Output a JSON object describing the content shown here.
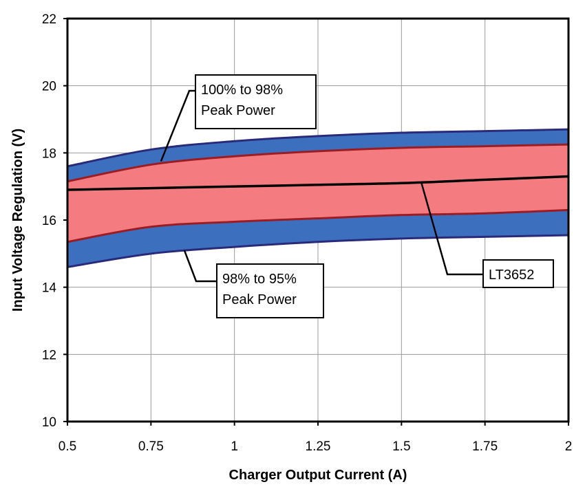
{
  "chart_data": {
    "type": "area",
    "title": "",
    "xlabel": "Charger Output Current (A)",
    "ylabel": "Input Voltage Regulation (V)",
    "xlim": [
      0.5,
      2
    ],
    "ylim": [
      10,
      22
    ],
    "x_ticks": [
      "0.5",
      "0.75",
      "1",
      "1.25",
      "1.5",
      "1.75",
      "2"
    ],
    "y_ticks": [
      "10",
      "12",
      "14",
      "16",
      "18",
      "20",
      "22"
    ],
    "grid": true,
    "x": [
      0.5,
      0.75,
      1.0,
      1.25,
      1.5,
      1.75,
      2.0
    ],
    "bands": [
      {
        "label": "98% to 95% Peak Power",
        "color": "#3d6fbf",
        "edge_color": "#2a2a7a",
        "upper": [
          17.6,
          18.1,
          18.35,
          18.5,
          18.6,
          18.65,
          18.7
        ],
        "lower": [
          14.6,
          15.0,
          15.2,
          15.35,
          15.45,
          15.5,
          15.55
        ]
      },
      {
        "label": "100% to 98% Peak Power",
        "color": "#f47c80",
        "edge_color": "#9c1c24",
        "upper": [
          17.15,
          17.65,
          17.9,
          18.05,
          18.15,
          18.2,
          18.25
        ],
        "lower": [
          15.35,
          15.8,
          15.95,
          16.05,
          16.15,
          16.2,
          16.3
        ]
      }
    ],
    "series": [
      {
        "name": "LT3652",
        "color": "#000000",
        "values": [
          16.9,
          16.95,
          17.0,
          17.05,
          17.1,
          17.2,
          17.3
        ]
      }
    ],
    "annotations": [
      {
        "id": "band-high",
        "lines": [
          "100% to 98%",
          "Peak Power"
        ],
        "pointer": {
          "x": 0.78,
          "y": 17.75
        }
      },
      {
        "id": "band-low",
        "lines": [
          "98% to 95%",
          "Peak Power"
        ],
        "pointer": {
          "x": 0.85,
          "y": 15.1
        }
      },
      {
        "id": "lt3652",
        "lines": [
          "LT3652"
        ],
        "pointer": {
          "x": 1.56,
          "y": 17.1
        }
      }
    ]
  }
}
